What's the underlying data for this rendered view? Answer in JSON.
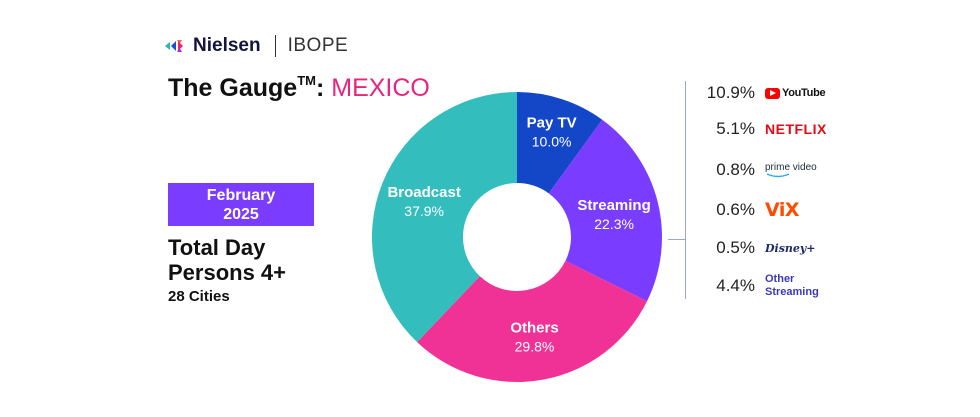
{
  "header": {
    "brand": "Nielsen",
    "partner": "IBOPE",
    "title_prefix": "The Gauge",
    "title_tm": "TM",
    "title_colon": ":",
    "country": "MEXICO"
  },
  "period": {
    "line1": "February",
    "line2": "2025"
  },
  "measure": {
    "line1": "Total Day",
    "line2": "Persons 4+",
    "cities": "28 Cities"
  },
  "colors": {
    "pay_tv": "#1446c8",
    "streaming": "#7a3dff",
    "others": "#f03296",
    "broadcast": "#34bdbd",
    "accent": "#e8247f"
  },
  "chart_data": {
    "type": "pie",
    "donut": true,
    "title": "",
    "slices": [
      {
        "name": "Pay TV",
        "label": "10.0%",
        "value": 10.0
      },
      {
        "name": "Streaming",
        "label": "22.3%",
        "value": 22.3
      },
      {
        "name": "Others",
        "label": "29.8%",
        "value": 29.8
      },
      {
        "name": "Broadcast",
        "label": "37.9%",
        "value": 37.9
      }
    ],
    "streaming_breakdown": [
      {
        "service": "YouTube",
        "label": "10.9%",
        "value": 10.9,
        "icon": "youtube-logo"
      },
      {
        "service": "NETFLIX",
        "label": "5.1%",
        "value": 5.1,
        "icon": "netflix-logo"
      },
      {
        "service": "prime video",
        "label": "0.8%",
        "value": 0.8,
        "icon": "prime-video-logo"
      },
      {
        "service": "ViX",
        "label": "0.6%",
        "value": 0.6,
        "icon": "vix-logo"
      },
      {
        "service": "Disney+",
        "label": "0.5%",
        "value": 0.5,
        "icon": "disney-plus-logo"
      },
      {
        "service": "Other Streaming",
        "label": "4.4%",
        "value": 4.4,
        "icon": "other-streaming-label"
      }
    ]
  }
}
